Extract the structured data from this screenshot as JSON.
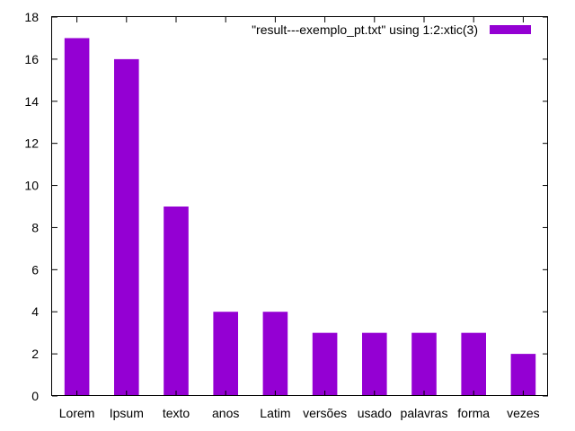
{
  "chart_data": {
    "type": "bar",
    "categories": [
      "Lorem",
      "Ipsum",
      "texto",
      "anos",
      "Latim",
      "versões",
      "usado",
      "palavras",
      "forma",
      "vezes"
    ],
    "series": [
      {
        "name": "\"result---exemplo_pt.txt\" using 1:2:xtic(3)",
        "values": [
          17,
          16,
          9,
          4,
          4,
          3,
          3,
          3,
          3,
          2
        ],
        "color": "#9400d3"
      }
    ],
    "ylim": [
      0,
      18
    ],
    "yticks": [
      0,
      2,
      4,
      6,
      8,
      10,
      12,
      14,
      16,
      18
    ],
    "grid": false,
    "legend_position": "top-right",
    "title": "",
    "xlabel": "",
    "ylabel": ""
  }
}
